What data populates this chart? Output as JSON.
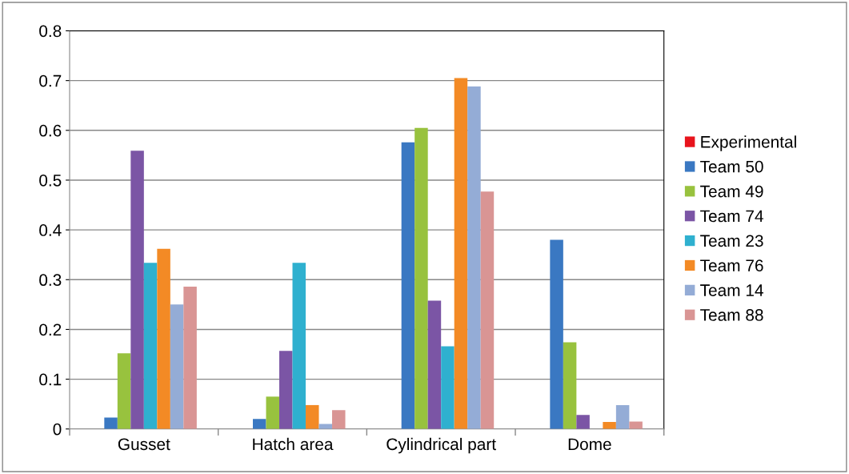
{
  "chart_data": {
    "type": "bar",
    "categories": [
      "Gusset",
      "Hatch area",
      "Cylindrical part",
      "Dome"
    ],
    "series": [
      {
        "name": "Experimental",
        "color": "#e8141c",
        "values": [
          0,
          0,
          0,
          0
        ]
      },
      {
        "name": "Team 50",
        "color": "#3a78c2",
        "values": [
          0.023,
          0.02,
          0.576,
          0.38
        ]
      },
      {
        "name": "Team 49",
        "color": "#98c23e",
        "values": [
          0.152,
          0.065,
          0.605,
          0.174
        ]
      },
      {
        "name": "Team 74",
        "color": "#7b55a5",
        "values": [
          0.559,
          0.157,
          0.258,
          0.028
        ]
      },
      {
        "name": "Team 23",
        "color": "#2fb0cf",
        "values": [
          0.334,
          0.334,
          0.166,
          0
        ]
      },
      {
        "name": "Team 76",
        "color": "#f38a25",
        "values": [
          0.362,
          0.048,
          0.705,
          0.014
        ]
      },
      {
        "name": "Team 14",
        "color": "#94acd6",
        "values": [
          0.25,
          0.01,
          0.688,
          0.048
        ]
      },
      {
        "name": "Team 88",
        "color": "#d99594",
        "values": [
          0.286,
          0.038,
          0.477,
          0.015
        ]
      }
    ],
    "ylim": [
      0,
      0.8
    ],
    "yticks": [
      0,
      0.1,
      0.2,
      0.3,
      0.4,
      0.5,
      0.6,
      0.7,
      0.8
    ],
    "grid": "y",
    "legend": "right"
  }
}
